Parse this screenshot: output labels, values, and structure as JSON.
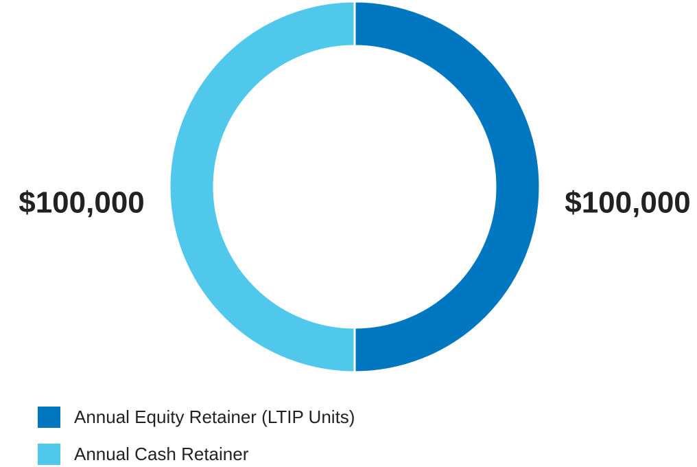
{
  "chart_data": {
    "type": "donut",
    "categories": [
      "Annual Equity Retainer (LTIP Units)",
      "Annual Cash Retainer"
    ],
    "values": [
      100000,
      100000
    ],
    "value_labels": [
      "$100,000",
      "$100,000"
    ],
    "colors": [
      "#0077c0",
      "#4fc8ec"
    ],
    "legend": "bottom-left"
  }
}
